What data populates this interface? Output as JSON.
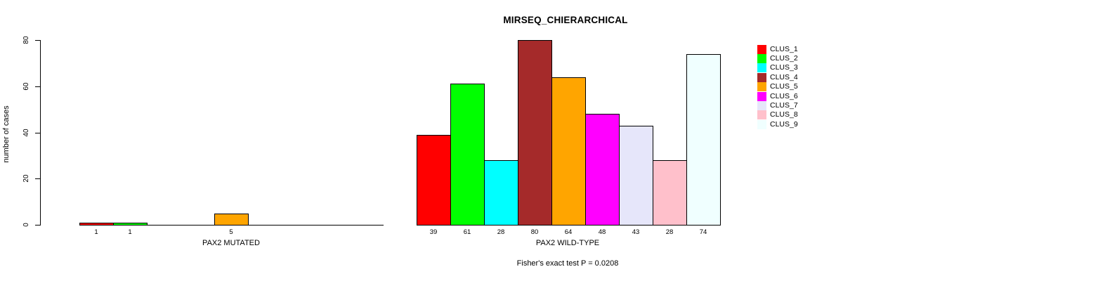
{
  "chart_data": {
    "type": "bar",
    "title": "MIRSEQ_CHIERARCHICAL",
    "ylabel": "number of cases",
    "ylim": [
      0,
      80
    ],
    "yticks": [
      0,
      20,
      40,
      60,
      80
    ],
    "grid": false,
    "legend_position": "right",
    "categories": [
      "CLUS_1",
      "CLUS_2",
      "CLUS_3",
      "CLUS_4",
      "CLUS_5",
      "CLUS_6",
      "CLUS_7",
      "CLUS_8",
      "CLUS_9"
    ],
    "colors": [
      "#ff0000",
      "#00ff00",
      "#00ffff",
      "#a52a2a",
      "#ffa500",
      "#ff00ff",
      "#e6e6fa",
      "#ffc0cb",
      "#f0ffff"
    ],
    "panels": [
      {
        "xlabel": "PAX2 MUTATED",
        "values": [
          1,
          1,
          0,
          0,
          5,
          0,
          0,
          0,
          0
        ],
        "bar_labels": [
          "1",
          "1",
          "",
          "",
          "5",
          "",
          "",
          "",
          ""
        ]
      },
      {
        "xlabel": "PAX2 WILD-TYPE",
        "values": [
          39,
          61,
          28,
          80,
          64,
          48,
          43,
          28,
          74
        ],
        "bar_labels": [
          "39",
          "61",
          "28",
          "80",
          "64",
          "48",
          "43",
          "28",
          "74"
        ]
      }
    ],
    "footnote": "Fisher's exact test P = 0.0208"
  }
}
